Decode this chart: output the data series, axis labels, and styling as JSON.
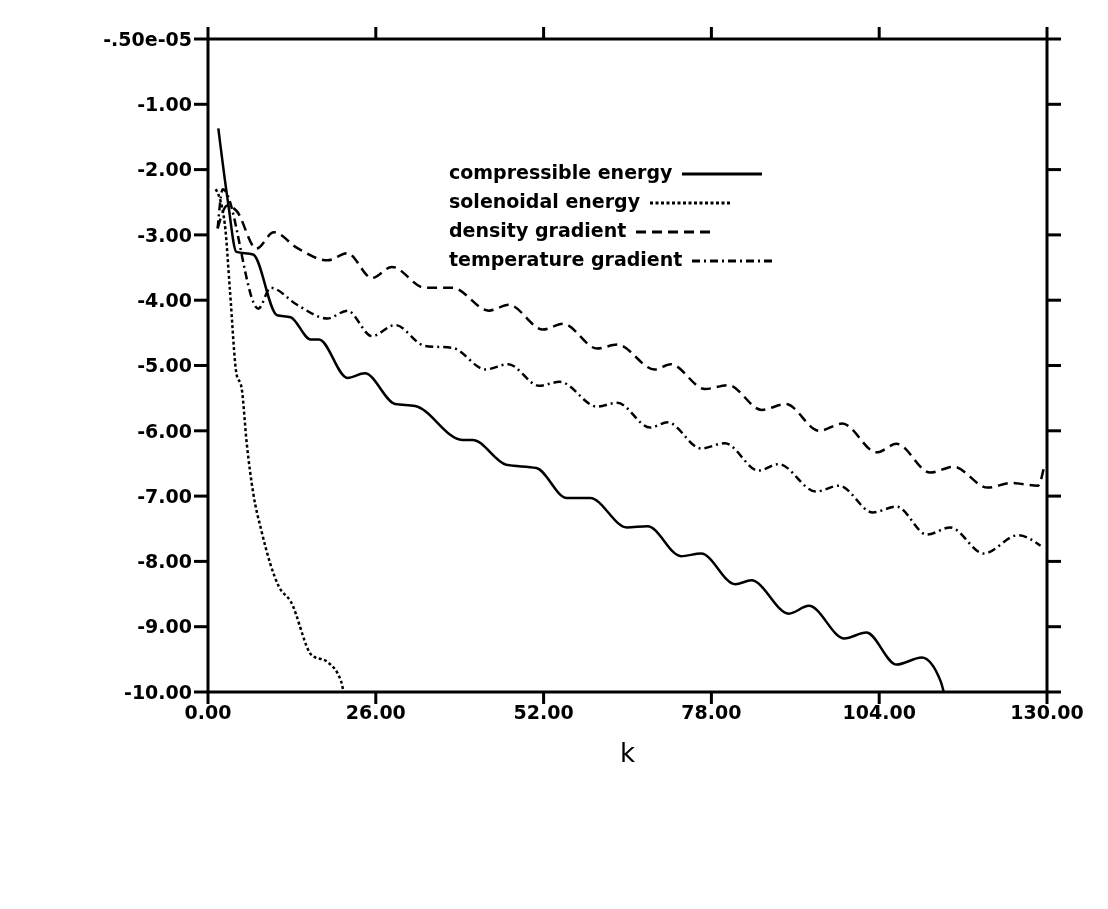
{
  "chart_data": {
    "type": "line",
    "xlabel": "k",
    "xlim": [
      0,
      130
    ],
    "xticks": [
      {
        "value": 0,
        "label": "0.00"
      },
      {
        "value": 26,
        "label": "26.00"
      },
      {
        "value": 52,
        "label": "52.00"
      },
      {
        "value": 78,
        "label": "78.00"
      },
      {
        "value": 104,
        "label": "104.00"
      },
      {
        "value": 130,
        "label": "130.00"
      }
    ],
    "ylim": [
      -10,
      -5e-06
    ],
    "yticks": [
      {
        "value": -5e-06,
        "label": "-.50e-05"
      },
      {
        "value": -1,
        "label": "-1.00"
      },
      {
        "value": -2,
        "label": "-2.00"
      },
      {
        "value": -3,
        "label": "-3.00"
      },
      {
        "value": -4,
        "label": "-4.00"
      },
      {
        "value": -5,
        "label": "-5.00"
      },
      {
        "value": -6,
        "label": "-6.00"
      },
      {
        "value": -7,
        "label": "-7.00"
      },
      {
        "value": -8,
        "label": "-8.00"
      },
      {
        "value": -9,
        "label": "-9.00"
      },
      {
        "value": -10,
        "label": "-10.00"
      }
    ],
    "legend": "top",
    "marker": "none",
    "series": [
      {
        "name": "compressible energy",
        "color": "#000000",
        "line_style": "solid",
        "x": [
          1.6,
          3.1,
          4.4,
          7.0,
          10.7,
          12.8,
          15.9,
          17.2,
          21.6,
          24.3,
          29,
          32.1,
          39.4,
          41,
          46.2,
          50.9,
          55.6,
          59.2,
          64.9,
          68.1,
          73.3,
          76.4,
          81.7,
          84.2,
          90,
          93.1,
          98.6,
          102,
          106.7,
          110.6,
          113.5,
          114
        ],
        "values": [
          -1.37,
          -2.5,
          -3.26,
          -3.3,
          -4.23,
          -4.26,
          -4.6,
          -4.6,
          -5.19,
          -5.12,
          -5.59,
          -5.62,
          -6.14,
          -6.14,
          -6.52,
          -6.57,
          -7.03,
          -7.03,
          -7.48,
          -7.46,
          -7.92,
          -7.88,
          -8.35,
          -8.29,
          -8.8,
          -8.68,
          -9.18,
          -9.09,
          -9.58,
          -9.47,
          -9.83,
          -10
        ]
      },
      {
        "name": "solenoidal energy",
        "color": "#000000",
        "line_style": "dotted",
        "x": [
          1.2,
          2.6,
          3.4,
          4.4,
          5.2,
          6,
          7,
          8.3,
          11,
          12.8,
          16.1,
          18.5,
          20.6,
          21
        ],
        "values": [
          -2.3,
          -2.83,
          -3.85,
          -5.12,
          -5.34,
          -6.19,
          -6.95,
          -7.54,
          -8.39,
          -8.61,
          -9.44,
          -9.54,
          -9.83,
          -10
        ]
      },
      {
        "name": "density gradient",
        "color": "#000000",
        "line_style": "dashed",
        "x": [
          1.5,
          3,
          4.4,
          7.5,
          10.2,
          13.8,
          18.5,
          21.6,
          25.4,
          28.5,
          33.6,
          37.9,
          43.5,
          46.6,
          51.9,
          55,
          60.3,
          63.4,
          69.2,
          71.7,
          77,
          80.6,
          85.8,
          89.5,
          94.7,
          98.3,
          103.6,
          106.7,
          111.9,
          115.5,
          120.8,
          124.4,
          128.6,
          129.5
        ],
        "values": [
          -2.9,
          -2.55,
          -2.63,
          -3.21,
          -2.96,
          -3.2,
          -3.39,
          -3.28,
          -3.66,
          -3.49,
          -3.81,
          -3.81,
          -4.16,
          -4.07,
          -4.45,
          -4.36,
          -4.74,
          -4.68,
          -5.06,
          -4.98,
          -5.36,
          -5.3,
          -5.68,
          -5.59,
          -6.0,
          -5.89,
          -6.33,
          -6.2,
          -6.64,
          -6.55,
          -6.87,
          -6.8,
          -6.84,
          -6.57
        ]
      },
      {
        "name": "temperature gradient",
        "color": "#000000",
        "line_style": "dashdot",
        "x": [
          1.5,
          2.3,
          7.8,
          9.7,
          13.8,
          18.5,
          21.6,
          25.4,
          29,
          33.6,
          37.9,
          43,
          46.5,
          51.3,
          54.5,
          60.3,
          63.4,
          68.5,
          71.2,
          76.4,
          80.1,
          85.3,
          88.4,
          94.2,
          97.8,
          103,
          106.7,
          111.4,
          115,
          120.2,
          125.5,
          129
        ],
        "values": [
          -2.9,
          -2.3,
          -4.13,
          -3.81,
          -4.07,
          -4.28,
          -4.16,
          -4.55,
          -4.38,
          -4.7,
          -4.73,
          -5.06,
          -4.98,
          -5.31,
          -5.25,
          -5.63,
          -5.57,
          -5.95,
          -5.87,
          -6.27,
          -6.19,
          -6.61,
          -6.51,
          -6.93,
          -6.84,
          -7.25,
          -7.16,
          -7.59,
          -7.48,
          -7.88,
          -7.6,
          -7.76
        ]
      }
    ]
  }
}
